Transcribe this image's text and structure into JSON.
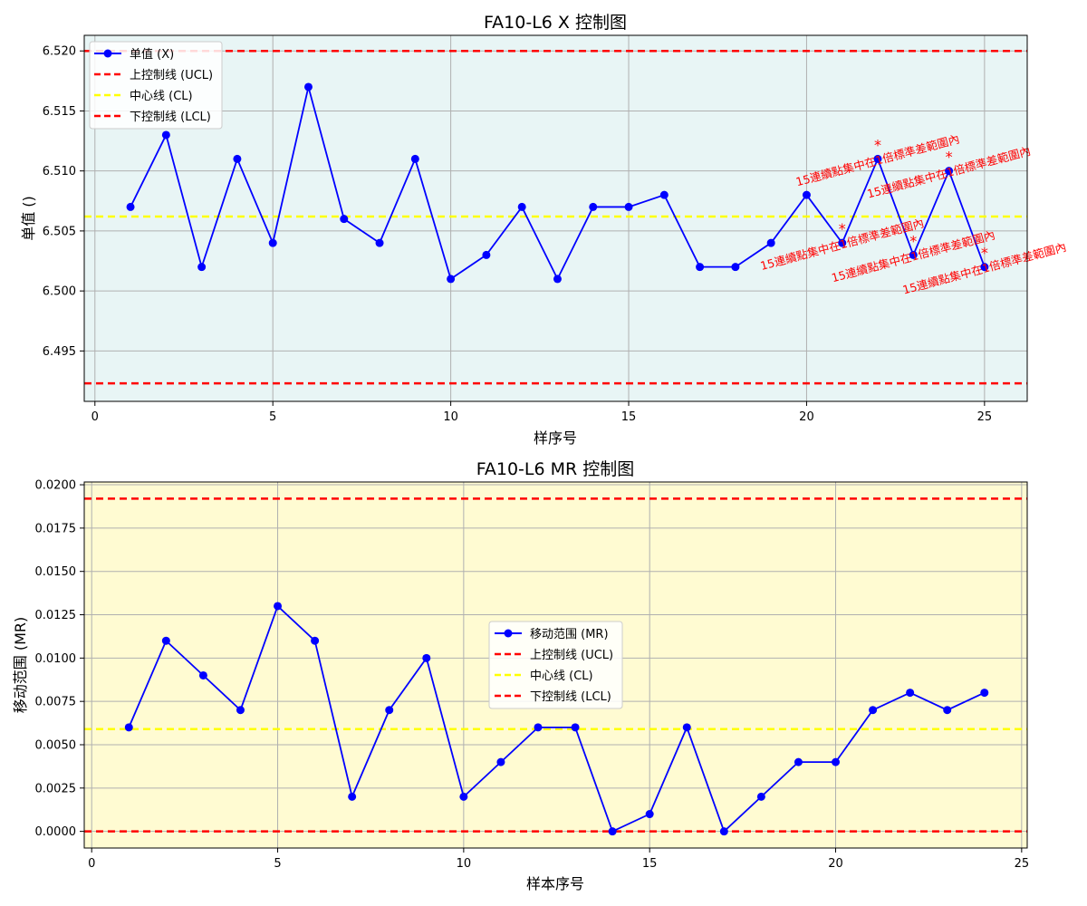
{
  "colors": {
    "series": "#0000ff",
    "ucl": "#ff0000",
    "cl": "#ffff00",
    "lcl": "#ff0000",
    "chart1_bg": "#e8f5f5",
    "chart2_bg": "#fffbd2",
    "grid": "#b0b0b0",
    "annotation": "#ff0000"
  },
  "chart_data": [
    {
      "type": "line",
      "title": "FA10-L6 X 控制图",
      "xlabel": "样序号",
      "ylabel": "单值 ()",
      "xlim": [
        -0.3,
        26.2
      ],
      "ylim": [
        6.4908,
        6.5213
      ],
      "x_ticks": [
        0,
        5,
        10,
        15,
        20,
        25
      ],
      "y_ticks": [
        6.495,
        6.5,
        6.505,
        6.51,
        6.515,
        6.52
      ],
      "y_tick_labels": [
        "6.495",
        "6.500",
        "6.505",
        "6.510",
        "6.515",
        "6.520"
      ],
      "grid": true,
      "legend_position": "upper-left",
      "series": [
        {
          "name": "单值 (X)",
          "x": [
            1,
            2,
            3,
            4,
            5,
            6,
            7,
            8,
            9,
            10,
            11,
            12,
            13,
            14,
            15,
            16,
            17,
            18,
            19,
            20,
            21,
            22,
            23,
            24,
            25
          ],
          "values": [
            6.507,
            6.513,
            6.502,
            6.511,
            6.504,
            6.517,
            6.506,
            6.504,
            6.511,
            6.501,
            6.503,
            6.507,
            6.501,
            6.507,
            6.507,
            6.508,
            6.502,
            6.502,
            6.504,
            6.508,
            6.504,
            6.511,
            6.503,
            6.51,
            6.502
          ]
        }
      ],
      "control_lines": [
        {
          "name": "上控制线 (UCL)",
          "value": 6.52,
          "color": "#ff0000"
        },
        {
          "name": "中心线 (CL)",
          "value": 6.5062,
          "color": "#ffff00"
        },
        {
          "name": "下控制线 (LCL)",
          "value": 6.4923,
          "color": "#ff0000"
        }
      ],
      "annotations": [
        {
          "x": 21,
          "y": 6.504,
          "text": "15連續點集中在1倍標準差範圍內"
        },
        {
          "x": 22,
          "y": 6.511,
          "text": "15連續點集中在1倍標準差範圍內"
        },
        {
          "x": 23,
          "y": 6.503,
          "text": "15連續點集中在1倍標準差範圍內"
        },
        {
          "x": 24,
          "y": 6.51,
          "text": "15連續點集中在1倍標準差範圍內"
        },
        {
          "x": 25,
          "y": 6.502,
          "text": "15連續點集中在1倍標準差範圍內"
        }
      ],
      "annotation_marker": "*"
    },
    {
      "type": "line",
      "title": "FA10-L6 MR 控制图",
      "xlabel": "样本序号",
      "ylabel": "移动范围 (MR)",
      "xlim": [
        -0.2,
        25.15
      ],
      "ylim": [
        -0.00096,
        0.02016
      ],
      "x_ticks": [
        0,
        5,
        10,
        15,
        20,
        25
      ],
      "y_ticks": [
        0.0,
        0.0025,
        0.005,
        0.0075,
        0.01,
        0.0125,
        0.015,
        0.0175,
        0.02
      ],
      "y_tick_labels": [
        "0.0000",
        "0.0025",
        "0.0050",
        "0.0075",
        "0.0100",
        "0.0125",
        "0.0150",
        "0.0175",
        "0.0200"
      ],
      "grid": true,
      "legend_position": "center",
      "series": [
        {
          "name": "移动范围 (MR)",
          "x": [
            1,
            2,
            3,
            4,
            5,
            6,
            7,
            8,
            9,
            10,
            11,
            12,
            13,
            14,
            15,
            16,
            17,
            18,
            19,
            20,
            21,
            22,
            23,
            24
          ],
          "values": [
            0.006,
            0.011,
            0.009,
            0.007,
            0.013,
            0.011,
            0.002,
            0.007,
            0.01,
            0.002,
            0.004,
            0.006,
            0.006,
            0.0,
            0.001,
            0.006,
            0.0,
            0.002,
            0.004,
            0.004,
            0.007,
            0.008,
            0.007,
            0.008
          ]
        }
      ],
      "control_lines": [
        {
          "name": "上控制线 (UCL)",
          "value": 0.0192,
          "color": "#ff0000"
        },
        {
          "name": "中心线 (CL)",
          "value": 0.0059,
          "color": "#ffff00"
        },
        {
          "name": "下控制线 (LCL)",
          "value": 0.0,
          "color": "#ff0000"
        }
      ]
    }
  ]
}
